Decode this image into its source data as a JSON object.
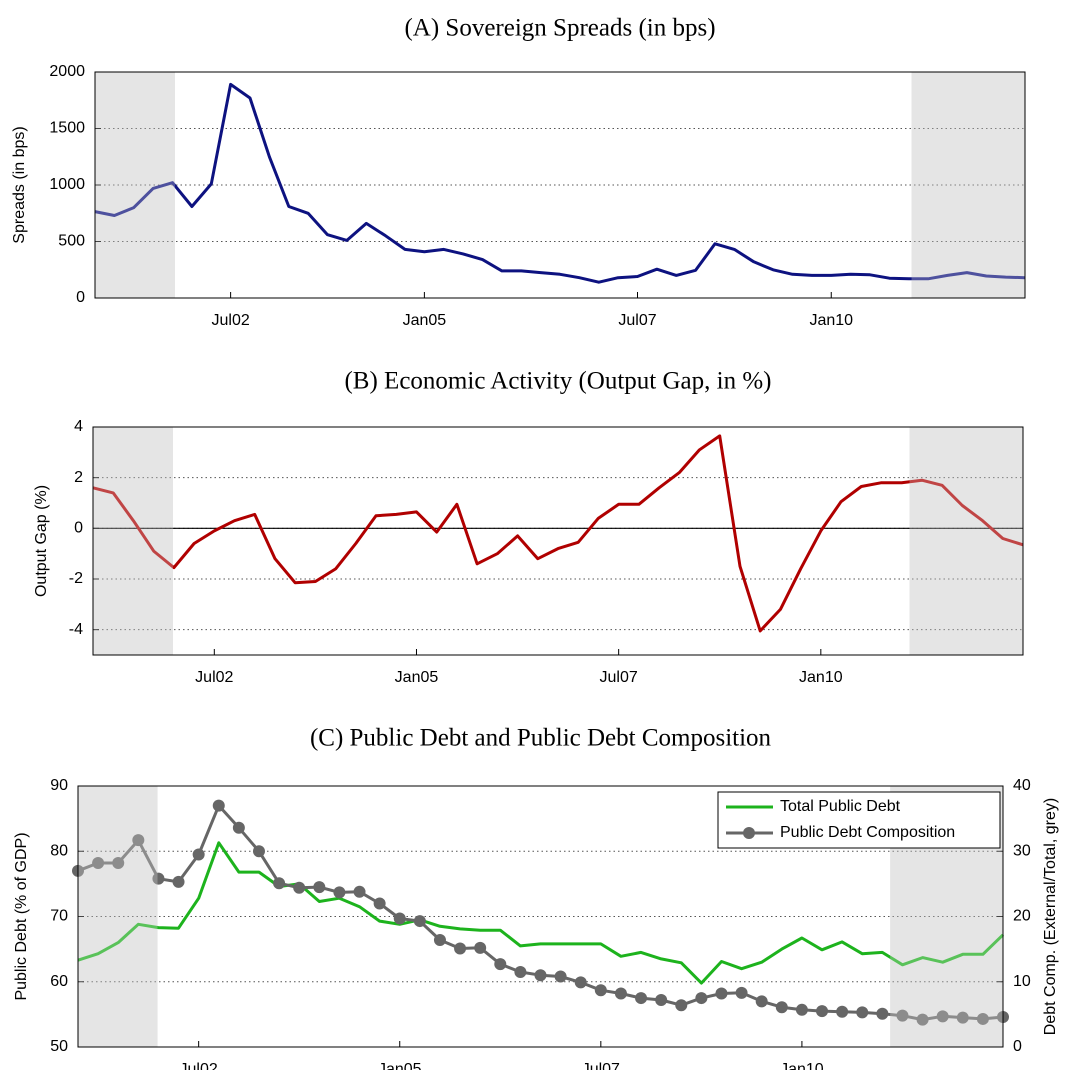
{
  "chart_data": [
    {
      "type": "line",
      "title": "(A) Sovereign Spreads (in bps)",
      "y_label": "Spreads (in bps)",
      "categories": [
        null,
        null,
        null,
        null,
        null,
        null,
        null,
        "Jul02",
        null,
        null,
        null,
        null,
        null,
        null,
        null,
        null,
        null,
        "Jan05",
        null,
        null,
        null,
        null,
        null,
        null,
        null,
        null,
        null,
        null,
        "Jul07",
        null,
        null,
        null,
        null,
        null,
        null,
        null,
        null,
        null,
        "Jan10",
        null,
        null,
        null,
        null,
        null,
        null,
        null,
        null,
        null,
        null
      ],
      "series": [
        {
          "name": "Sovereign Spreads",
          "color": "#0d1280",
          "values": [
            765,
            730,
            800,
            970,
            1020,
            810,
            1010,
            1890,
            1770,
            1250,
            810,
            750,
            560,
            510,
            660,
            550,
            430,
            410,
            430,
            390,
            340,
            240,
            240,
            225,
            210,
            180,
            140,
            180,
            190,
            255,
            200,
            245,
            480,
            430,
            320,
            250,
            210,
            200,
            200,
            210,
            205,
            175,
            170,
            170,
            200,
            225,
            195,
            185,
            180
          ]
        }
      ],
      "ylim": [
        0,
        2000
      ],
      "yticks": [
        0,
        500,
        1000,
        1500,
        2000
      ],
      "grid": true
    },
    {
      "type": "line",
      "title": "(B) Economic Activity (Output Gap, in %)",
      "y_label": "Output Gap (%)",
      "categories": [
        null,
        null,
        null,
        null,
        null,
        null,
        "Jul02",
        null,
        null,
        null,
        null,
        null,
        null,
        null,
        null,
        null,
        "Jan05",
        null,
        null,
        null,
        null,
        null,
        null,
        null,
        null,
        null,
        "Jul07",
        null,
        null,
        null,
        null,
        null,
        null,
        null,
        null,
        null,
        "Jan10",
        null,
        null,
        null,
        null,
        null,
        null,
        null,
        null,
        null,
        null
      ],
      "series": [
        {
          "name": "Output Gap",
          "color": "#b00000",
          "values": [
            1.6,
            1.4,
            0.3,
            -0.9,
            -1.55,
            -0.6,
            -0.1,
            0.3,
            0.55,
            -1.2,
            -2.15,
            -2.1,
            -1.6,
            -0.6,
            0.5,
            0.55,
            0.65,
            -0.15,
            0.95,
            -1.4,
            -1.0,
            -0.3,
            -1.2,
            -0.8,
            -0.55,
            0.4,
            0.95,
            0.95,
            1.6,
            2.2,
            3.1,
            3.65,
            -1.5,
            -4.05,
            -3.2,
            -1.6,
            -0.1,
            1.05,
            1.65,
            1.8,
            1.8,
            1.9,
            1.7,
            0.9,
            0.3,
            -0.4,
            -0.65
          ]
        }
      ],
      "ylim": [
        -5,
        4
      ],
      "yticks": [
        -4,
        -2,
        0,
        2,
        4
      ],
      "grid": true,
      "zero_line": true
    },
    {
      "type": "line",
      "title": "(C) Public Debt and Public Debt Composition",
      "y_label": "Public Debt (% of GDP)",
      "y2_label": "Debt Comp. (External/Total, grey)",
      "categories": [
        null,
        null,
        null,
        null,
        null,
        null,
        "Jul02",
        null,
        null,
        null,
        null,
        null,
        null,
        null,
        null,
        null,
        "Jan05",
        null,
        null,
        null,
        null,
        null,
        null,
        null,
        null,
        null,
        "Jul07",
        null,
        null,
        null,
        null,
        null,
        null,
        null,
        null,
        null,
        "Jan10",
        null,
        null,
        null,
        null,
        null,
        null,
        null,
        null,
        null,
        null
      ],
      "series": [
        {
          "name": "Total Public Debt",
          "color": "#1db31d",
          "values": [
            63.3,
            64.3,
            66,
            68.8,
            68.3,
            68.2,
            72.8,
            81.3,
            76.8,
            76.8,
            74.6,
            75,
            72.3,
            72.8,
            71.5,
            69.3,
            68.8,
            69.5,
            68.5,
            68.1,
            67.9,
            67.9,
            65.5,
            65.8,
            65.8,
            65.8,
            65.8,
            63.9,
            64.5,
            63.5,
            62.9,
            59.8,
            63.1,
            62,
            63,
            65,
            66.7,
            64.9,
            66.1,
            64.3,
            64.5,
            62.6,
            63.7,
            63,
            64.2,
            64.2,
            67.2
          ]
        },
        {
          "name": "Public Debt Composition",
          "color": "#666666",
          "marker": "circle",
          "axis": "y2",
          "values": [
            27,
            28.2,
            28.2,
            31.7,
            25.8,
            25.3,
            29.5,
            37,
            33.6,
            30,
            25.1,
            24.4,
            24.5,
            23.7,
            23.8,
            22,
            19.7,
            19.3,
            16.4,
            15.1,
            15.2,
            12.7,
            11.5,
            11,
            10.8,
            9.9,
            8.7,
            8.2,
            7.5,
            7.2,
            6.4,
            7.5,
            8.2,
            8.3,
            7,
            6.1,
            5.7,
            5.5,
            5.4,
            5.3,
            5.1,
            4.8,
            4.2,
            4.7,
            4.5,
            4.3,
            4.6
          ]
        }
      ],
      "ylim": [
        50,
        90
      ],
      "yticks": [
        50,
        60,
        70,
        80,
        90
      ],
      "y2lim": [
        0,
        40
      ],
      "y2ticks": [
        0,
        10,
        20,
        30,
        40
      ],
      "grid": true,
      "legend": "upper right"
    }
  ]
}
